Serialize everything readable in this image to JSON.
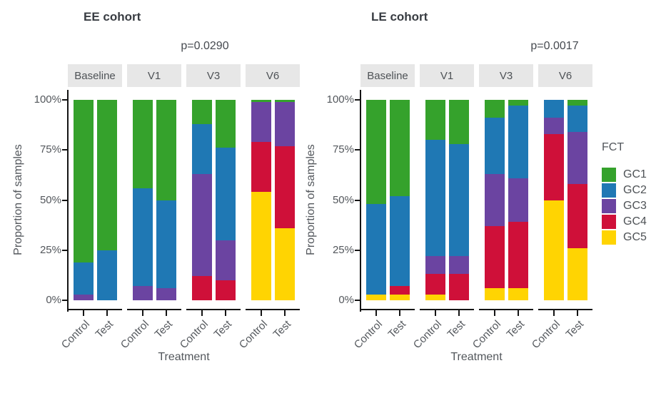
{
  "chart_data": {
    "type": "bar",
    "subtype": "stacked-100-percent-faceted",
    "title_left": "EE cohort",
    "title_right": "LE cohort",
    "y_label": "Proportion of samples",
    "x_label": "Treatment",
    "y_ticks": [
      "100%",
      "75%",
      "50%",
      "25%",
      "0%"
    ],
    "y_tick_values": [
      100,
      75,
      50,
      25,
      0
    ],
    "ylim": [
      0,
      100
    ],
    "x_categories": [
      "Control",
      "Test"
    ],
    "facets": [
      "Baseline",
      "V1",
      "V3",
      "V6"
    ],
    "stack_order_bottom_to_top": [
      "GC5",
      "GC4",
      "GC3",
      "GC2",
      "GC1"
    ],
    "series_colors": {
      "GC1": "#35a22c",
      "GC2": "#1f78b4",
      "GC3": "#6b44a1",
      "GC4": "#cf1039",
      "GC5": "#ffd402"
    },
    "panels": [
      {
        "title": "EE cohort",
        "p_value": "p=0.0290",
        "facet_data": [
          {
            "facet": "Baseline",
            "bars": [
              {
                "treatment": "Control",
                "values": {
                  "GC1": 81,
                  "GC2": 16,
                  "GC3": 3,
                  "GC4": 0,
                  "GC5": 0
                }
              },
              {
                "treatment": "Test",
                "values": {
                  "GC1": 75,
                  "GC2": 25,
                  "GC3": 0,
                  "GC4": 0,
                  "GC5": 0
                }
              }
            ]
          },
          {
            "facet": "V1",
            "bars": [
              {
                "treatment": "Control",
                "values": {
                  "GC1": 44,
                  "GC2": 49,
                  "GC3": 7,
                  "GC4": 0,
                  "GC5": 0
                }
              },
              {
                "treatment": "Test",
                "values": {
                  "GC1": 50,
                  "GC2": 44,
                  "GC3": 6,
                  "GC4": 0,
                  "GC5": 0
                }
              }
            ]
          },
          {
            "facet": "V3",
            "bars": [
              {
                "treatment": "Control",
                "values": {
                  "GC1": 12,
                  "GC2": 25,
                  "GC3": 51,
                  "GC4": 12,
                  "GC5": 0
                }
              },
              {
                "treatment": "Test",
                "values": {
                  "GC1": 24,
                  "GC2": 46,
                  "GC3": 20,
                  "GC4": 10,
                  "GC5": 0
                }
              }
            ]
          },
          {
            "facet": "V6",
            "bars": [
              {
                "treatment": "Control",
                "values": {
                  "GC1": 1,
                  "GC2": 0,
                  "GC3": 20,
                  "GC4": 25,
                  "GC5": 54
                }
              },
              {
                "treatment": "Test",
                "values": {
                  "GC1": 1,
                  "GC2": 0,
                  "GC3": 22,
                  "GC4": 41,
                  "GC5": 36
                }
              }
            ]
          }
        ]
      },
      {
        "title": "LE cohort",
        "p_value": "p=0.0017",
        "facet_data": [
          {
            "facet": "Baseline",
            "bars": [
              {
                "treatment": "Control",
                "values": {
                  "GC1": 52,
                  "GC2": 45,
                  "GC3": 0,
                  "GC4": 0,
                  "GC5": 3
                }
              },
              {
                "treatment": "Test",
                "values": {
                  "GC1": 48,
                  "GC2": 45,
                  "GC3": 0,
                  "GC4": 4,
                  "GC5": 3
                }
              }
            ]
          },
          {
            "facet": "V1",
            "bars": [
              {
                "treatment": "Control",
                "values": {
                  "GC1": 20,
                  "GC2": 58,
                  "GC3": 9,
                  "GC4": 10,
                  "GC5": 3
                }
              },
              {
                "treatment": "Test",
                "values": {
                  "GC1": 22,
                  "GC2": 56,
                  "GC3": 9,
                  "GC4": 13,
                  "GC5": 0
                }
              }
            ]
          },
          {
            "facet": "V3",
            "bars": [
              {
                "treatment": "Control",
                "values": {
                  "GC1": 9,
                  "GC2": 28,
                  "GC3": 26,
                  "GC4": 31,
                  "GC5": 6
                }
              },
              {
                "treatment": "Test",
                "values": {
                  "GC1": 3,
                  "GC2": 36,
                  "GC3": 22,
                  "GC4": 33,
                  "GC5": 6
                }
              }
            ]
          },
          {
            "facet": "V6",
            "bars": [
              {
                "treatment": "Control",
                "values": {
                  "GC1": 0,
                  "GC2": 9,
                  "GC3": 8,
                  "GC4": 33,
                  "GC5": 50
                }
              },
              {
                "treatment": "Test",
                "values": {
                  "GC1": 3,
                  "GC2": 13,
                  "GC3": 26,
                  "GC4": 32,
                  "GC5": 26
                }
              }
            ]
          }
        ]
      }
    ]
  },
  "legend": {
    "title": "FCT",
    "entries": [
      {
        "label": "GC1",
        "color": "#35a22c"
      },
      {
        "label": "GC2",
        "color": "#1f78b4"
      },
      {
        "label": "GC3",
        "color": "#6b44a1"
      },
      {
        "label": "GC4",
        "color": "#cf1039"
      },
      {
        "label": "GC5",
        "color": "#ffd402"
      }
    ]
  },
  "style_colors": {
    "strip_background": "#e7e7e7",
    "axis_line": "#141414",
    "title_text": "#383c42",
    "axis_text": "#53575c"
  }
}
